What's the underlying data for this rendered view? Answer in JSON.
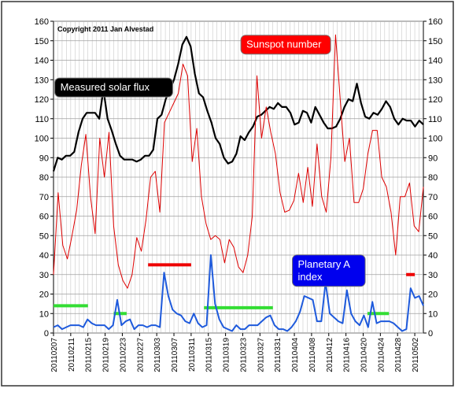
{
  "chart_data": {
    "type": "line",
    "copyright": "Copyright 2011 Jan Alvestad",
    "ylim": [
      0,
      160
    ],
    "y_ticks": [
      0,
      10,
      20,
      30,
      40,
      50,
      60,
      70,
      80,
      90,
      100,
      110,
      120,
      130,
      140,
      150,
      160
    ],
    "grid": true,
    "x_tick_labels": [
      "20110207",
      "20110211",
      "20110215",
      "20110219",
      "20110223",
      "20110227",
      "20110303",
      "20110307",
      "20110311",
      "20110315",
      "20110319",
      "20110323",
      "20110327",
      "20110331",
      "20110404",
      "20110408",
      "20110412",
      "20110416",
      "20110420",
      "20110424",
      "20110428",
      "20110502"
    ],
    "x_start": "2011-02-07",
    "x_end": "2011-05-04",
    "series": [
      {
        "name": "Measured solar flux",
        "color": "#000000",
        "values": [
          83,
          90,
          89,
          91,
          91,
          93,
          103,
          110,
          113,
          113,
          113,
          110,
          125,
          110,
          104,
          97,
          91,
          89,
          89,
          89,
          88,
          89,
          91,
          91,
          94,
          110,
          112,
          120,
          125,
          130,
          138,
          148,
          152,
          147,
          133,
          123,
          121,
          114,
          108,
          100,
          97,
          90,
          87,
          88,
          92,
          101,
          99,
          103,
          106,
          111,
          112,
          114,
          116,
          115,
          118,
          116,
          116,
          113,
          107,
          108,
          114,
          113,
          108,
          116,
          112,
          108,
          105,
          105,
          106,
          110,
          116,
          120,
          119,
          128,
          118,
          111,
          110,
          113,
          112,
          115,
          119,
          116,
          110,
          107,
          110,
          109,
          109,
          106,
          109,
          107
        ]
      },
      {
        "name": "Sunspot number",
        "color": "#dd0000",
        "values": [
          30,
          72,
          45,
          38,
          50,
          63,
          86,
          102,
          70,
          51,
          100,
          80,
          103,
          55,
          35,
          27,
          23,
          30,
          49,
          42,
          58,
          80,
          83,
          62,
          108,
          113,
          118,
          123,
          138,
          132,
          88,
          105,
          70,
          56,
          48,
          50,
          48,
          36,
          48,
          44,
          34,
          31,
          40,
          60,
          132,
          100,
          116,
          103,
          92,
          72,
          62,
          63,
          68,
          82,
          67,
          85,
          65,
          97,
          70,
          62,
          90,
          153,
          120,
          88,
          100,
          67,
          67,
          74,
          92,
          104,
          104,
          80,
          75,
          62,
          40,
          70,
          70,
          77,
          55,
          52,
          75
        ]
      },
      {
        "name": "Planetary A index",
        "color": "#1e5adc",
        "values": [
          3,
          4,
          2,
          3,
          4,
          4,
          4,
          3,
          7,
          5,
          4,
          4,
          4,
          2,
          4,
          17,
          4,
          6,
          7,
          2,
          4,
          4,
          3,
          4,
          4,
          3,
          31,
          19,
          12,
          10,
          9,
          6,
          5,
          10,
          5,
          3,
          4,
          40,
          15,
          7,
          3,
          2,
          1,
          4,
          2,
          2,
          4,
          4,
          4,
          6,
          8,
          9,
          4,
          2,
          2,
          1,
          3,
          6,
          11,
          19,
          18,
          17,
          6,
          6,
          26,
          10,
          8,
          6,
          5,
          22,
          10,
          6,
          4,
          9,
          3,
          16,
          5,
          6,
          6,
          6,
          5,
          3,
          1,
          2,
          23,
          18,
          19,
          14
        ]
      }
    ],
    "annotations": [
      {
        "text": "Measured solar flux",
        "fill": "#000000",
        "color": "#ffffff",
        "x": "2011-02-21",
        "y": 126
      },
      {
        "text": "Sunspot number",
        "fill": "#ff0000",
        "color": "#ffffff",
        "x": "2011-04-02",
        "y": 148
      },
      {
        "text": "Planetary A index",
        "fill": "#0000ee",
        "color": "#ffffff",
        "x": "2011-04-12",
        "y": 32
      }
    ],
    "reference_segments": [
      {
        "color": "#33dd33",
        "x_start": "2011-02-07",
        "x_end": "2011-02-15",
        "y": 14
      },
      {
        "color": "#33dd33",
        "x_start": "2011-02-21",
        "x_end": "2011-02-24",
        "y": 10
      },
      {
        "color": "#33dd33",
        "x_start": "2011-03-14",
        "x_end": "2011-03-30",
        "y": 13
      },
      {
        "color": "#33dd33",
        "x_start": "2011-04-21",
        "x_end": "2011-04-26",
        "y": 10
      },
      {
        "color": "#ee0000",
        "x_start": "2011-03-01",
        "x_end": "2011-03-11",
        "y": 35
      },
      {
        "color": "#ee0000",
        "x_start": "2011-04-04",
        "x_end": "2011-04-11",
        "y": 25
      },
      {
        "color": "#ee0000",
        "x_start": "2011-04-30",
        "x_end": "2011-05-02",
        "y": 30
      }
    ]
  }
}
